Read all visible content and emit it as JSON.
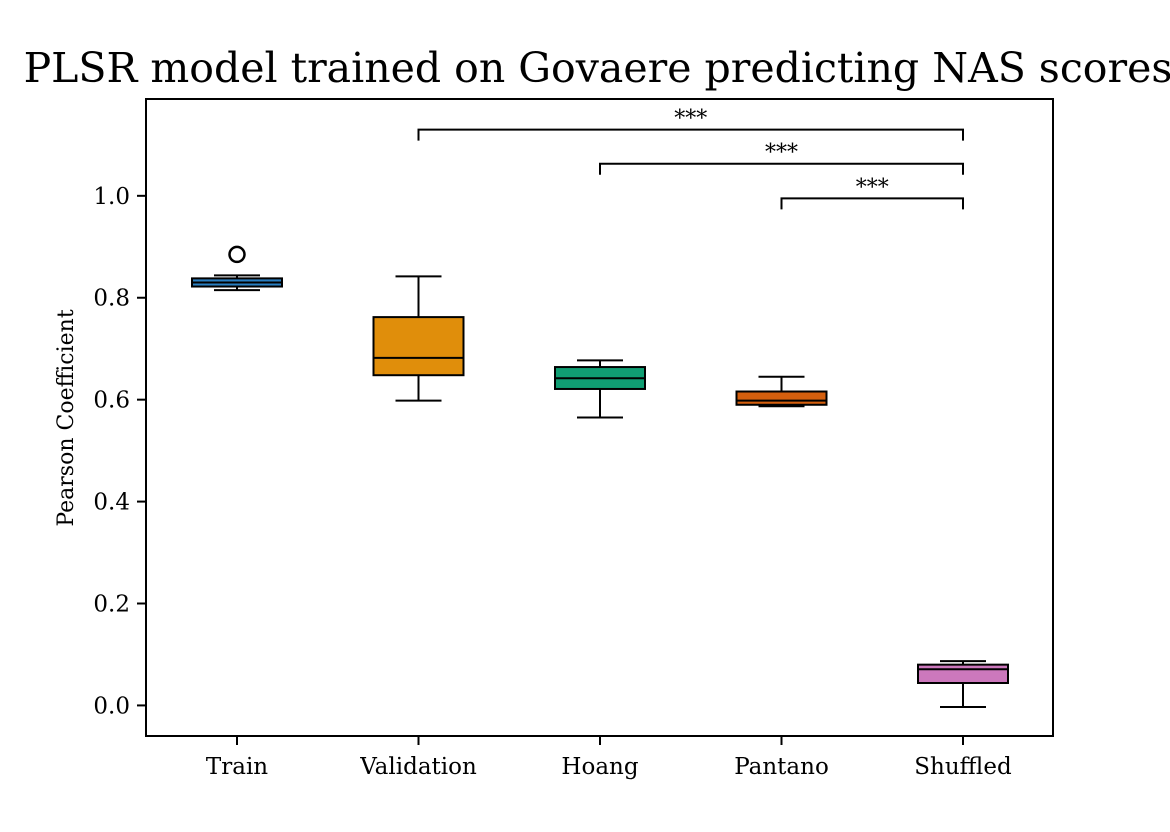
{
  "chart_data": {
    "type": "box",
    "title": "PLSR model trained on Govaere predicting NAS scores",
    "xlabel": "",
    "ylabel": "Pearson Coefficient",
    "ylim": [
      -0.06,
      1.19
    ],
    "yticks": [
      "0.0",
      "0.2",
      "0.4",
      "0.6",
      "0.8",
      "1.0"
    ],
    "grid": false,
    "categories": [
      "Train",
      "Validation",
      "Hoang",
      "Pantano",
      "Shuffled"
    ],
    "boxes": [
      {
        "name": "Train",
        "whisker_low": 0.815,
        "q1": 0.822,
        "median": 0.83,
        "q3": 0.838,
        "whisker_high": 0.844,
        "outliers": [
          0.885
        ],
        "color": "#2a7fc1"
      },
      {
        "name": "Validation",
        "whisker_low": 0.598,
        "q1": 0.648,
        "median": 0.682,
        "q3": 0.762,
        "whisker_high": 0.842,
        "outliers": [],
        "color": "#e08e0b"
      },
      {
        "name": "Hoang",
        "whisker_low": 0.565,
        "q1": 0.621,
        "median": 0.642,
        "q3": 0.664,
        "whisker_high": 0.677,
        "outliers": [],
        "color": "#109e73"
      },
      {
        "name": "Pantano",
        "whisker_low": 0.587,
        "q1": 0.59,
        "median": 0.598,
        "q3": 0.616,
        "whisker_high": 0.645,
        "outliers": [],
        "color": "#d45f0e"
      },
      {
        "name": "Shuffled",
        "whisker_low": -0.003,
        "q1": 0.044,
        "median": 0.071,
        "q3": 0.08,
        "whisker_high": 0.087,
        "outliers": [],
        "color": "#cc78bc"
      }
    ],
    "significance": [
      {
        "from": "Validation",
        "to": "Shuffled",
        "label": "***",
        "y": 1.13
      },
      {
        "from": "Hoang",
        "to": "Shuffled",
        "label": "***",
        "y": 1.063
      },
      {
        "from": "Pantano",
        "to": "Shuffled",
        "label": "***",
        "y": 0.995
      }
    ]
  }
}
